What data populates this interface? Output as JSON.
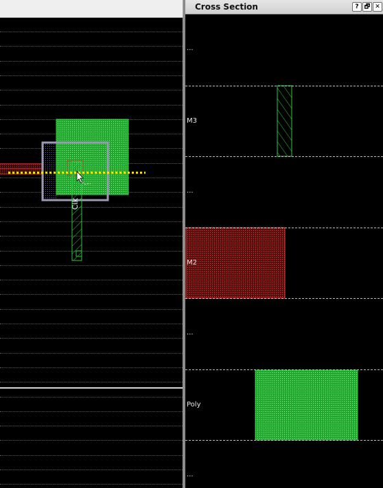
{
  "layout_view": {
    "net_label": "Clk",
    "colors": {
      "metal3": "#2ecc40",
      "metal2": "#d03030",
      "selection": "#9a9ab4",
      "cut_line": "#ffee00",
      "grid": "#5a5a5a"
    },
    "icons": [
      "mouse-pointer-icon"
    ]
  },
  "cross_section": {
    "title": "Cross Section",
    "buttons": {
      "help": "?",
      "restore": "🗗",
      "close": "✕"
    },
    "layers": [
      {
        "label": "...",
        "color": "none"
      },
      {
        "label": "M3",
        "color": "#2ecc40"
      },
      {
        "label": "...",
        "color": "none"
      },
      {
        "label": "M2",
        "color": "#d03030"
      },
      {
        "label": "...",
        "color": "none"
      },
      {
        "label": "Poly",
        "color": "#2ecc40"
      },
      {
        "label": "...",
        "color": "none"
      }
    ]
  }
}
